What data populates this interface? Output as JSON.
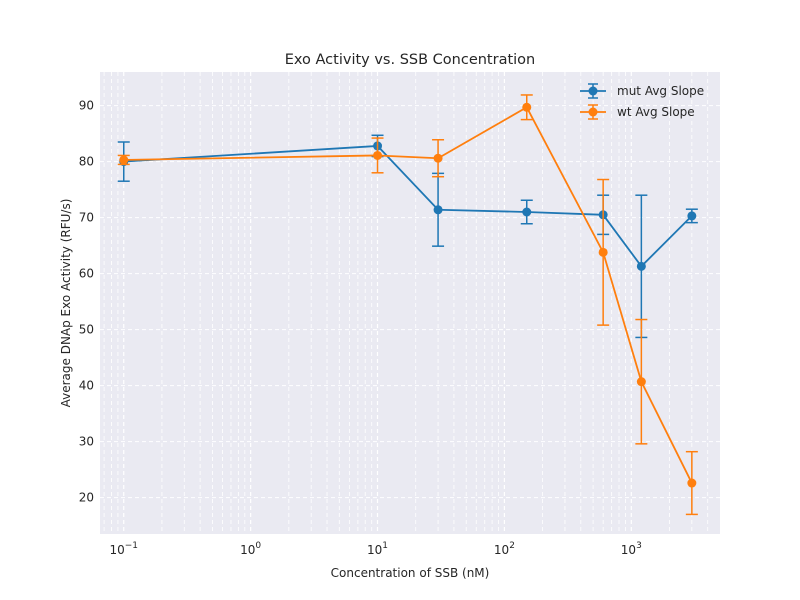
{
  "chart_data": {
    "type": "line",
    "title": "Exo Activity vs. SSB Concentration",
    "xlabel": "Concentration of SSB (nM)",
    "ylabel": "Average DNAp Exo Activity (RFU/s)",
    "xscale": "log",
    "xlim": [
      0.065,
      5000
    ],
    "ylim": [
      13.5,
      96
    ],
    "x_ticks": [
      {
        "value": 0.1,
        "base": "10",
        "exp": "−1"
      },
      {
        "value": 1,
        "base": "10",
        "exp": "0"
      },
      {
        "value": 10,
        "base": "10",
        "exp": "1"
      },
      {
        "value": 100,
        "base": "10",
        "exp": "2"
      },
      {
        "value": 1000,
        "base": "10",
        "exp": "3"
      }
    ],
    "y_ticks": [
      20,
      30,
      40,
      50,
      60,
      70,
      80,
      90
    ],
    "grid": true,
    "legend_position": "top-right",
    "series": [
      {
        "name": "mut Avg Slope",
        "color": "#1f77b4",
        "x": [
          0.1,
          10,
          30,
          150,
          600,
          1200,
          3000
        ],
        "y": [
          80.0,
          82.8,
          71.4,
          71.0,
          70.5,
          61.3,
          70.3
        ],
        "err": [
          3.5,
          1.9,
          6.5,
          2.1,
          3.5,
          12.7,
          1.2
        ]
      },
      {
        "name": "wt Avg Slope",
        "color": "#ff7f0e",
        "x": [
          0.1,
          10,
          30,
          150,
          600,
          1200,
          3000
        ],
        "y": [
          80.3,
          81.1,
          80.6,
          89.7,
          63.8,
          40.7,
          22.6
        ],
        "err": [
          0.8,
          3.1,
          3.3,
          2.2,
          13.0,
          11.1,
          5.6
        ]
      }
    ]
  }
}
